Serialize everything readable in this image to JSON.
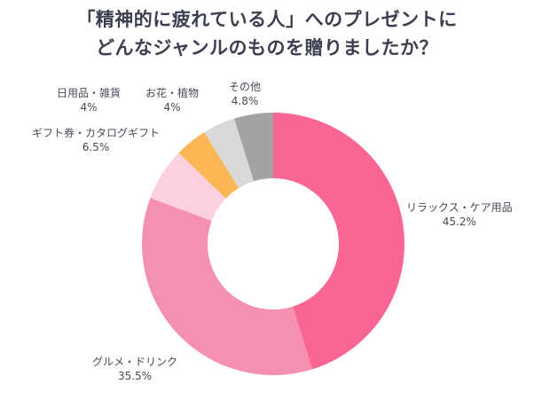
{
  "title": {
    "line1": "「精神的に疲れている人」へのプレゼントに",
    "line2": "どんなジャンルのものを贈りましたか？"
  },
  "chart_data": {
    "type": "pie",
    "subtype": "donut",
    "title": "「精神的に疲れている人」へのプレゼントにどんなジャンルのものを贈りましたか？",
    "categories": [
      "リラックス・ケア用品",
      "グルメ・ドリンク",
      "ギフト券・カタログギフト",
      "日用品・雑貨",
      "お花・植物",
      "その他"
    ],
    "values": [
      45.2,
      35.5,
      6.5,
      4,
      4,
      4.8
    ],
    "value_labels": [
      "45.2%",
      "35.5%",
      "6.5%",
      "4%",
      "4%",
      "4.8%"
    ],
    "colors": [
      "#F96694",
      "#F590B0",
      "#FDD0DF",
      "#FBB655",
      "#D9D9D9",
      "#A3A3A3"
    ],
    "start_angle": "12 o'clock, clockwise",
    "legend": "none (direct labels)"
  },
  "labels": {
    "relax": {
      "name": "リラックス・ケア用品",
      "value": "45.2%"
    },
    "gourmet": {
      "name": "グルメ・ドリンク",
      "value": "35.5%"
    },
    "gift": {
      "name": "ギフト券・カタログギフト",
      "value": "6.5%"
    },
    "daily": {
      "name": "日用品・雑貨",
      "value": "4%"
    },
    "flower": {
      "name": "お花・植物",
      "value": "4%"
    },
    "other": {
      "name": "その他",
      "value": "4.8%"
    }
  }
}
